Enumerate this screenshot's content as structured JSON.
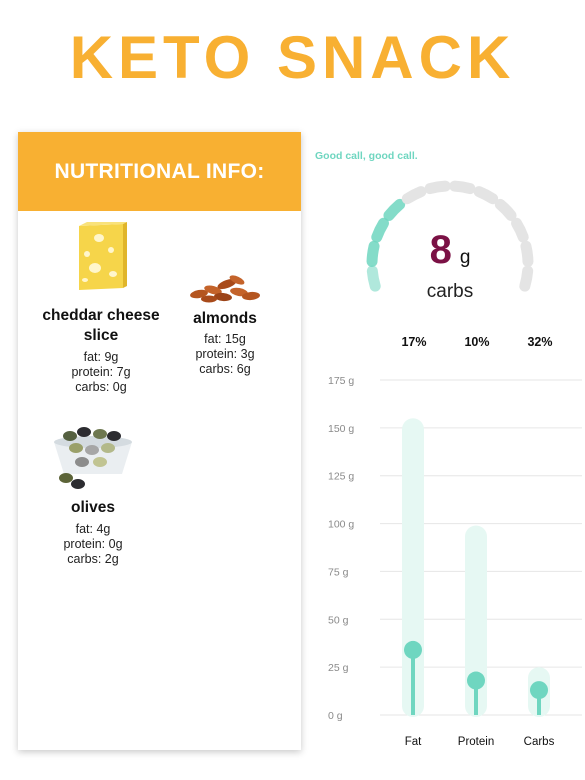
{
  "title": "KETO SNACK",
  "panel": {
    "header": "NUTRITIONAL INFO:",
    "items": [
      {
        "name": "cheddar cheese slice",
        "icon": "cheese-icon",
        "fat": "fat: 9g",
        "protein": "protein: 7g",
        "carbs": "carbs: 0g"
      },
      {
        "name": "almonds",
        "icon": "almonds-icon",
        "fat": "fat: 15g",
        "protein": "protein: 3g",
        "carbs": "carbs: 6g"
      },
      {
        "name": "olives",
        "icon": "olives-icon",
        "fat": "fat: 4g",
        "protein": "protein: 0g",
        "carbs": "carbs: 2g"
      }
    ]
  },
  "tagline": "Good call, good call.",
  "gauge": {
    "value": "8",
    "unit": "g",
    "label": "carbs",
    "segments_total": 12,
    "segments_filled": 4
  },
  "colors": {
    "accent": "#f8b032",
    "teal": "#6fd6c0",
    "teal_light": "#e6f8f3",
    "gauge_empty": "#e4e4e4",
    "value": "#7b1145"
  },
  "chart_data": {
    "type": "bar",
    "categories": [
      "Fat",
      "Protein",
      "Carbs"
    ],
    "percent_labels": [
      "17%",
      "10%",
      "32%"
    ],
    "series": [
      {
        "values": [
          34,
          18,
          13
        ]
      },
      {
        "values": [
          155,
          99,
          25
        ]
      }
    ],
    "y_ticks": [
      "0 g",
      "25 g",
      "50 g",
      "75 g",
      "100 g",
      "125 g",
      "150 g",
      "175 g"
    ],
    "ylim": [
      0,
      175
    ],
    "grid": true
  }
}
